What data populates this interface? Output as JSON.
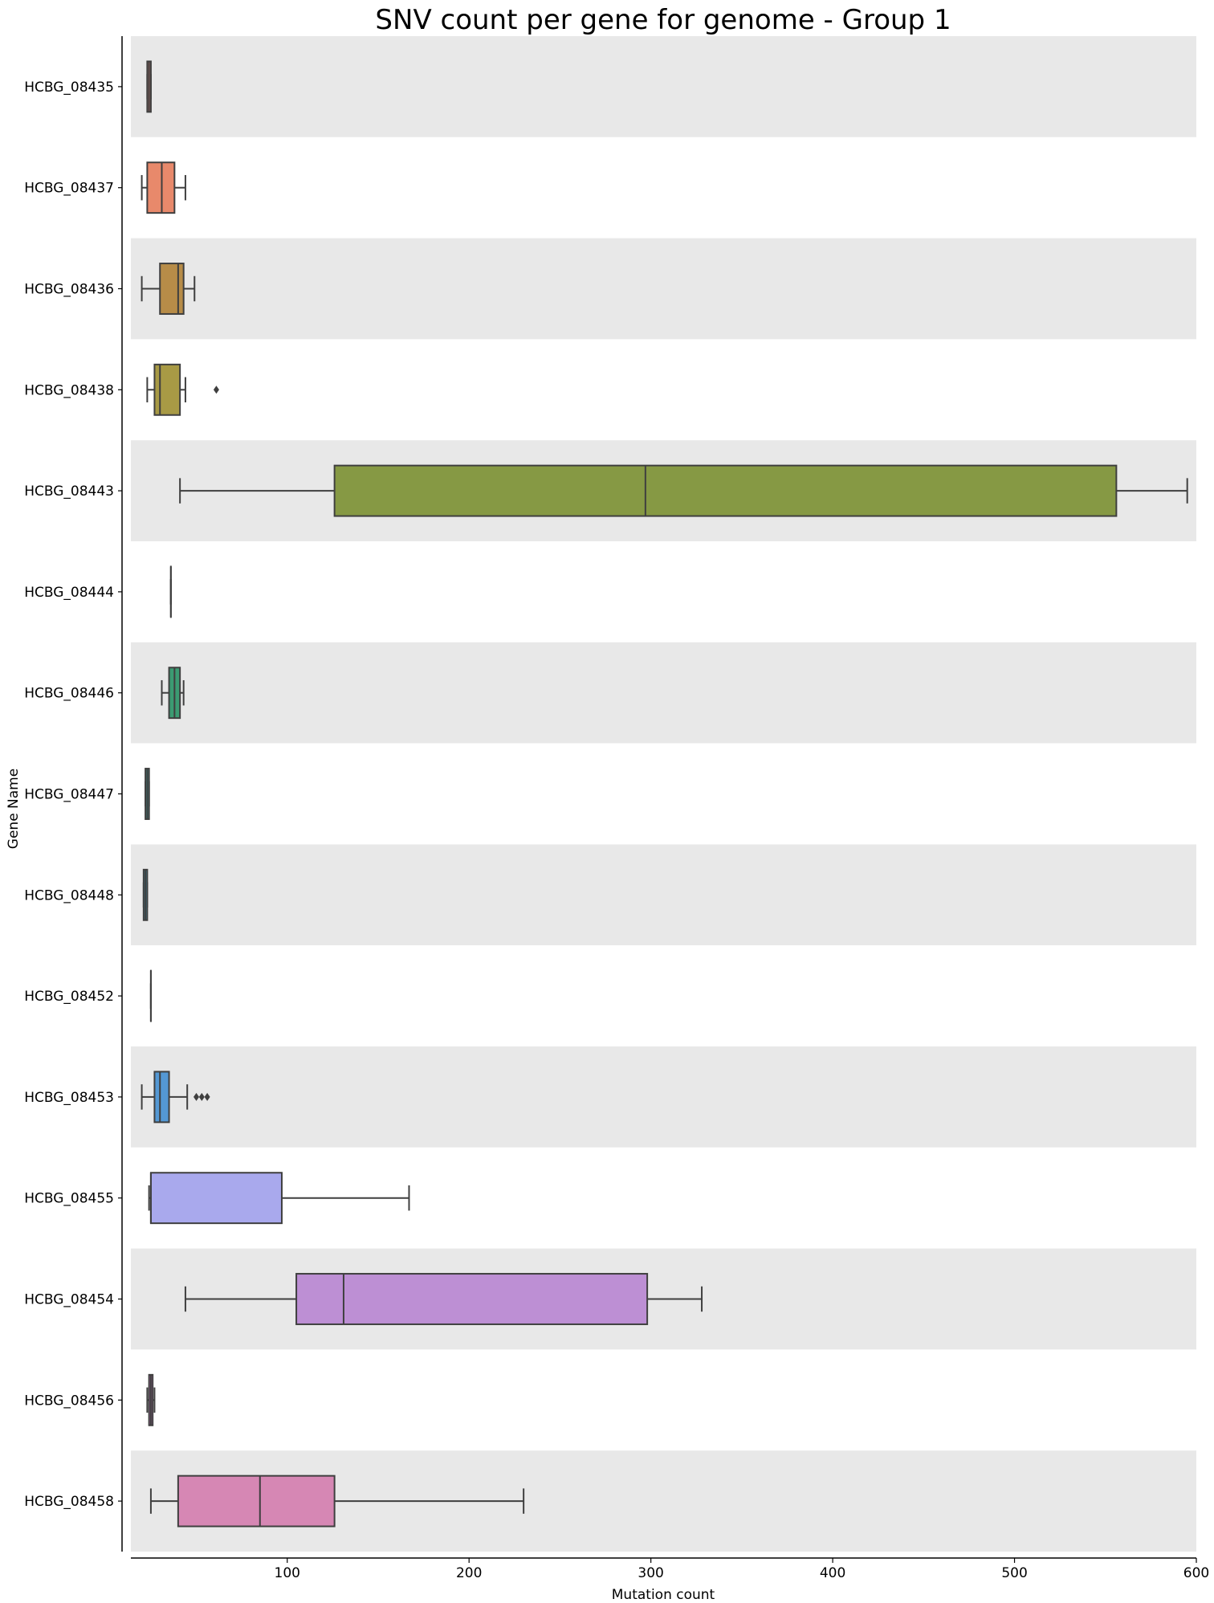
{
  "chart_data": {
    "type": "box",
    "title": "SNV count per gene for genome - Group 1",
    "xlabel": "Mutation count",
    "ylabel": "Gene Name",
    "xlim": [
      14,
      600
    ],
    "xticks": [
      100,
      200,
      300,
      400,
      500,
      600
    ],
    "xtick_labels": [
      "100",
      "200",
      "300",
      "400",
      "500",
      "600"
    ],
    "band_colors": [
      "#e8e8e8",
      "#ffffff"
    ],
    "categories": [
      "HCBG_08435",
      "HCBG_08437",
      "HCBG_08436",
      "HCBG_08438",
      "HCBG_08443",
      "HCBG_08444",
      "HCBG_08446",
      "HCBG_08447",
      "HCBG_08448",
      "HCBG_08452",
      "HCBG_08453",
      "HCBG_08455",
      "HCBG_08454",
      "HCBG_08456",
      "HCBG_08458"
    ],
    "series": [
      {
        "gene": "HCBG_08435",
        "color": "#e8897f",
        "whisker_low": 23,
        "q1": 23,
        "median": 24,
        "q3": 25,
        "whisker_high": 25,
        "outliers": []
      },
      {
        "gene": "HCBG_08437",
        "color": "#e8896b",
        "whisker_low": 20,
        "q1": 23,
        "median": 31,
        "q3": 38,
        "whisker_high": 44,
        "outliers": []
      },
      {
        "gene": "HCBG_08436",
        "color": "#b78c48",
        "whisker_low": 20,
        "q1": 30,
        "median": 40,
        "q3": 43,
        "whisker_high": 49,
        "outliers": []
      },
      {
        "gene": "HCBG_08438",
        "color": "#a89a45",
        "whisker_low": 23,
        "q1": 27,
        "median": 30,
        "q3": 41,
        "whisker_high": 44,
        "outliers": [
          61
        ]
      },
      {
        "gene": "HCBG_08443",
        "color": "#869944",
        "whisker_low": 41,
        "q1": 126,
        "median": 297,
        "q3": 556,
        "whisker_high": 595,
        "outliers": []
      },
      {
        "gene": "HCBG_08444",
        "color": "#6aa14d",
        "whisker_low": 36,
        "q1": 36,
        "median": 36,
        "q3": 36,
        "whisker_high": 36,
        "outliers": []
      },
      {
        "gene": "HCBG_08446",
        "color": "#3b9b72",
        "whisker_low": 31,
        "q1": 35,
        "median": 38,
        "q3": 41,
        "whisker_high": 43,
        "outliers": []
      },
      {
        "gene": "HCBG_08447",
        "color": "#3ca3a0",
        "whisker_low": 22,
        "q1": 22,
        "median": 23,
        "q3": 24,
        "whisker_high": 24,
        "outliers": []
      },
      {
        "gene": "HCBG_08448",
        "color": "#3e9fb8",
        "whisker_low": 21,
        "q1": 21,
        "median": 22,
        "q3": 23,
        "whisker_high": 23,
        "outliers": []
      },
      {
        "gene": "HCBG_08452",
        "color": "#4699c9",
        "whisker_low": 25,
        "q1": 25,
        "median": 25,
        "q3": 25,
        "whisker_high": 25,
        "outliers": []
      },
      {
        "gene": "HCBG_08453",
        "color": "#5498d4",
        "whisker_low": 20,
        "q1": 27,
        "median": 30,
        "q3": 35,
        "whisker_high": 45,
        "outliers": [
          50,
          53,
          56
        ]
      },
      {
        "gene": "HCBG_08455",
        "color": "#a9a9ed",
        "whisker_low": 24,
        "q1": 25,
        "median": 25,
        "q3": 97,
        "whisker_high": 167,
        "outliers": []
      },
      {
        "gene": "HCBG_08454",
        "color": "#bd8fd4",
        "whisker_low": 44,
        "q1": 105,
        "median": 131,
        "q3": 298,
        "whisker_high": 328,
        "outliers": []
      },
      {
        "gene": "HCBG_08456",
        "color": "#d57fcd",
        "whisker_low": 23,
        "q1": 24,
        "median": 25,
        "q3": 26,
        "whisker_high": 27,
        "outliers": []
      },
      {
        "gene": "HCBG_08458",
        "color": "#d687b4",
        "whisker_low": 25,
        "q1": 40,
        "median": 85,
        "q3": 126,
        "whisker_high": 230,
        "outliers": []
      }
    ]
  }
}
